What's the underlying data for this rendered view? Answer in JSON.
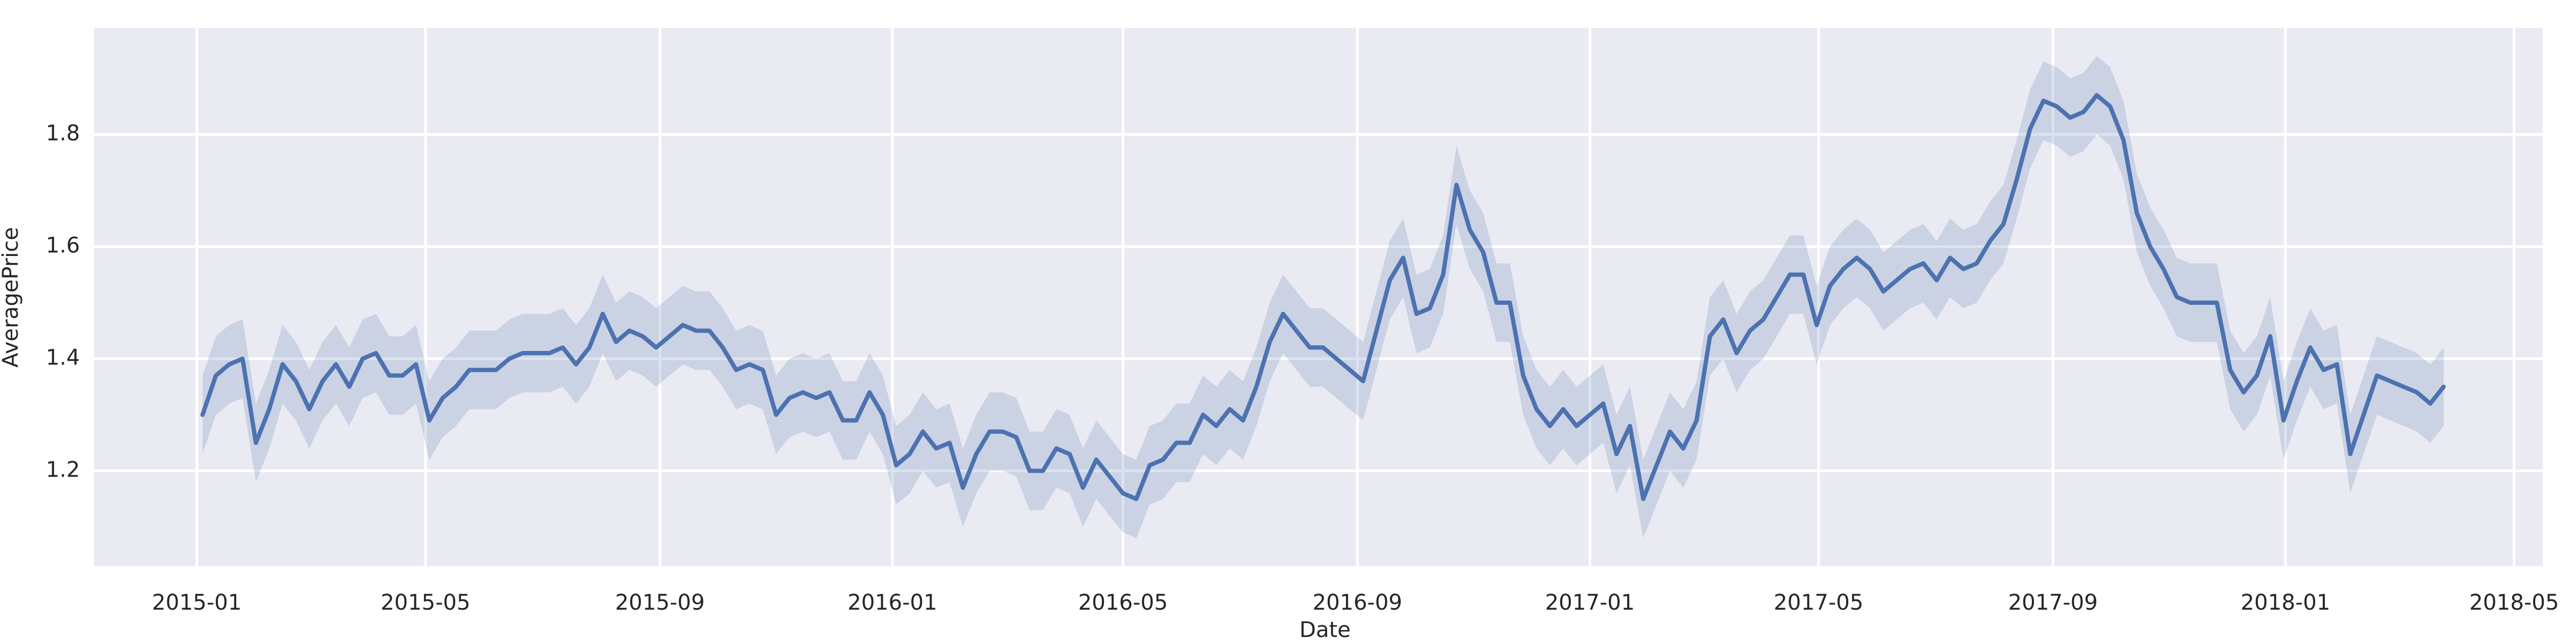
{
  "chart_data": {
    "type": "line",
    "x_label": "Date",
    "y_label": "AveragePrice",
    "x": [
      "2015-01-04",
      "2015-01-11",
      "2015-01-18",
      "2015-01-25",
      "2015-02-01",
      "2015-02-08",
      "2015-02-15",
      "2015-02-22",
      "2015-03-01",
      "2015-03-08",
      "2015-03-15",
      "2015-03-22",
      "2015-03-29",
      "2015-04-05",
      "2015-04-12",
      "2015-04-19",
      "2015-04-26",
      "2015-05-03",
      "2015-05-10",
      "2015-05-17",
      "2015-05-24",
      "2015-05-31",
      "2015-06-07",
      "2015-06-14",
      "2015-06-21",
      "2015-06-28",
      "2015-07-05",
      "2015-07-12",
      "2015-07-19",
      "2015-07-26",
      "2015-08-02",
      "2015-08-09",
      "2015-08-16",
      "2015-08-23",
      "2015-08-30",
      "2015-09-06",
      "2015-09-13",
      "2015-09-20",
      "2015-09-27",
      "2015-10-04",
      "2015-10-11",
      "2015-10-18",
      "2015-10-25",
      "2015-11-01",
      "2015-11-08",
      "2015-11-15",
      "2015-11-22",
      "2015-11-29",
      "2015-12-06",
      "2015-12-13",
      "2015-12-20",
      "2015-12-27",
      "2016-01-03",
      "2016-01-10",
      "2016-01-17",
      "2016-01-24",
      "2016-01-31",
      "2016-02-07",
      "2016-02-14",
      "2016-02-21",
      "2016-02-28",
      "2016-03-06",
      "2016-03-13",
      "2016-03-20",
      "2016-03-27",
      "2016-04-03",
      "2016-04-10",
      "2016-04-17",
      "2016-04-24",
      "2016-05-01",
      "2016-05-08",
      "2016-05-15",
      "2016-05-22",
      "2016-05-29",
      "2016-06-05",
      "2016-06-12",
      "2016-06-19",
      "2016-06-26",
      "2016-07-03",
      "2016-07-10",
      "2016-07-17",
      "2016-07-24",
      "2016-07-31",
      "2016-08-07",
      "2016-08-14",
      "2016-08-21",
      "2016-08-28",
      "2016-09-04",
      "2016-09-11",
      "2016-09-18",
      "2016-09-25",
      "2016-10-02",
      "2016-10-09",
      "2016-10-16",
      "2016-10-23",
      "2016-10-30",
      "2016-11-06",
      "2016-11-13",
      "2016-11-20",
      "2016-11-27",
      "2016-12-04",
      "2016-12-11",
      "2016-12-18",
      "2016-12-25",
      "2017-01-01",
      "2017-01-08",
      "2017-01-15",
      "2017-01-22",
      "2017-01-29",
      "2017-02-05",
      "2017-02-12",
      "2017-02-19",
      "2017-02-26",
      "2017-03-05",
      "2017-03-12",
      "2017-03-19",
      "2017-03-26",
      "2017-04-02",
      "2017-04-09",
      "2017-04-16",
      "2017-04-23",
      "2017-04-30",
      "2017-05-07",
      "2017-05-14",
      "2017-05-21",
      "2017-05-28",
      "2017-06-04",
      "2017-06-11",
      "2017-06-18",
      "2017-06-25",
      "2017-07-02",
      "2017-07-09",
      "2017-07-16",
      "2017-07-23",
      "2017-07-30",
      "2017-08-06",
      "2017-08-13",
      "2017-08-20",
      "2017-08-27",
      "2017-09-03",
      "2017-09-10",
      "2017-09-17",
      "2017-09-24",
      "2017-10-01",
      "2017-10-08",
      "2017-10-15",
      "2017-10-22",
      "2017-10-29",
      "2017-11-05",
      "2017-11-12",
      "2017-11-19",
      "2017-11-26",
      "2017-12-03",
      "2017-12-10",
      "2017-12-17",
      "2017-12-24",
      "2017-12-31",
      "2018-01-07",
      "2018-01-14",
      "2018-01-21",
      "2018-01-28",
      "2018-02-04",
      "2018-02-11",
      "2018-02-18",
      "2018-02-25",
      "2018-03-04",
      "2018-03-11",
      "2018-03-18",
      "2018-03-25"
    ],
    "series": [
      {
        "color": "#4c72b0",
        "values": [
          1.3,
          1.37,
          1.39,
          1.4,
          1.25,
          1.31,
          1.39,
          1.36,
          1.31,
          1.36,
          1.39,
          1.35,
          1.4,
          1.41,
          1.37,
          1.37,
          1.39,
          1.29,
          1.33,
          1.35,
          1.38,
          1.38,
          1.38,
          1.4,
          1.41,
          1.41,
          1.41,
          1.42,
          1.39,
          1.42,
          1.48,
          1.43,
          1.45,
          1.44,
          1.42,
          1.44,
          1.46,
          1.45,
          1.45,
          1.42,
          1.38,
          1.39,
          1.38,
          1.3,
          1.33,
          1.34,
          1.33,
          1.34,
          1.29,
          1.29,
          1.34,
          1.3,
          1.21,
          1.23,
          1.27,
          1.24,
          1.25,
          1.17,
          1.23,
          1.27,
          1.27,
          1.26,
          1.2,
          1.2,
          1.24,
          1.23,
          1.17,
          1.22,
          1.19,
          1.16,
          1.15,
          1.21,
          1.22,
          1.25,
          1.25,
          1.3,
          1.28,
          1.31,
          1.29,
          1.35,
          1.43,
          1.48,
          1.45,
          1.42,
          1.42,
          1.4,
          1.38,
          1.36,
          1.45,
          1.54,
          1.58,
          1.48,
          1.49,
          1.55,
          1.71,
          1.63,
          1.59,
          1.5,
          1.5,
          1.37,
          1.31,
          1.28,
          1.31,
          1.28,
          1.3,
          1.32,
          1.23,
          1.28,
          1.15,
          1.21,
          1.27,
          1.24,
          1.29,
          1.44,
          1.47,
          1.41,
          1.45,
          1.47,
          1.51,
          1.55,
          1.55,
          1.46,
          1.53,
          1.56,
          1.58,
          1.56,
          1.52,
          1.54,
          1.56,
          1.57,
          1.54,
          1.58,
          1.56,
          1.57,
          1.61,
          1.64,
          1.72,
          1.81,
          1.86,
          1.85,
          1.83,
          1.84,
          1.87,
          1.85,
          1.79,
          1.66,
          1.6,
          1.56,
          1.51,
          1.5,
          1.5,
          1.5,
          1.38,
          1.34,
          1.37,
          1.44,
          1.29,
          1.36,
          1.42,
          1.38,
          1.39,
          1.23,
          1.3,
          1.37,
          1.36,
          1.35,
          1.34,
          1.32,
          1.35
        ],
        "ci_lower": [
          1.23,
          1.3,
          1.32,
          1.33,
          1.18,
          1.24,
          1.32,
          1.29,
          1.24,
          1.29,
          1.32,
          1.28,
          1.33,
          1.34,
          1.3,
          1.3,
          1.32,
          1.22,
          1.26,
          1.28,
          1.31,
          1.31,
          1.31,
          1.33,
          1.34,
          1.34,
          1.34,
          1.35,
          1.32,
          1.35,
          1.41,
          1.36,
          1.38,
          1.37,
          1.35,
          1.37,
          1.39,
          1.38,
          1.38,
          1.35,
          1.31,
          1.32,
          1.31,
          1.23,
          1.26,
          1.27,
          1.26,
          1.27,
          1.22,
          1.22,
          1.27,
          1.23,
          1.14,
          1.16,
          1.2,
          1.17,
          1.18,
          1.1,
          1.16,
          1.2,
          1.2,
          1.19,
          1.13,
          1.13,
          1.17,
          1.16,
          1.1,
          1.15,
          1.12,
          1.09,
          1.08,
          1.14,
          1.15,
          1.18,
          1.18,
          1.23,
          1.21,
          1.24,
          1.22,
          1.28,
          1.36,
          1.41,
          1.38,
          1.35,
          1.35,
          1.33,
          1.31,
          1.29,
          1.38,
          1.47,
          1.51,
          1.41,
          1.42,
          1.48,
          1.64,
          1.56,
          1.52,
          1.43,
          1.43,
          1.3,
          1.24,
          1.21,
          1.24,
          1.21,
          1.23,
          1.25,
          1.16,
          1.21,
          1.08,
          1.14,
          1.2,
          1.17,
          1.22,
          1.37,
          1.4,
          1.34,
          1.38,
          1.4,
          1.44,
          1.48,
          1.48,
          1.39,
          1.46,
          1.49,
          1.51,
          1.49,
          1.45,
          1.47,
          1.49,
          1.5,
          1.47,
          1.51,
          1.49,
          1.5,
          1.54,
          1.57,
          1.65,
          1.74,
          1.79,
          1.78,
          1.76,
          1.77,
          1.8,
          1.78,
          1.72,
          1.59,
          1.53,
          1.49,
          1.44,
          1.43,
          1.43,
          1.43,
          1.31,
          1.27,
          1.3,
          1.37,
          1.22,
          1.29,
          1.35,
          1.31,
          1.32,
          1.16,
          1.23,
          1.3,
          1.29,
          1.28,
          1.27,
          1.25,
          1.28
        ],
        "ci_upper": [
          1.37,
          1.44,
          1.46,
          1.47,
          1.32,
          1.38,
          1.46,
          1.43,
          1.38,
          1.43,
          1.46,
          1.42,
          1.47,
          1.48,
          1.44,
          1.44,
          1.46,
          1.36,
          1.4,
          1.42,
          1.45,
          1.45,
          1.45,
          1.47,
          1.48,
          1.48,
          1.48,
          1.49,
          1.46,
          1.49,
          1.55,
          1.5,
          1.52,
          1.51,
          1.49,
          1.51,
          1.53,
          1.52,
          1.52,
          1.49,
          1.45,
          1.46,
          1.45,
          1.37,
          1.4,
          1.41,
          1.4,
          1.41,
          1.36,
          1.36,
          1.41,
          1.37,
          1.28,
          1.3,
          1.34,
          1.31,
          1.32,
          1.24,
          1.3,
          1.34,
          1.34,
          1.33,
          1.27,
          1.27,
          1.31,
          1.3,
          1.24,
          1.29,
          1.26,
          1.23,
          1.22,
          1.28,
          1.29,
          1.32,
          1.32,
          1.37,
          1.35,
          1.38,
          1.36,
          1.42,
          1.5,
          1.55,
          1.52,
          1.49,
          1.49,
          1.47,
          1.45,
          1.43,
          1.52,
          1.61,
          1.65,
          1.55,
          1.56,
          1.62,
          1.78,
          1.7,
          1.66,
          1.57,
          1.57,
          1.44,
          1.38,
          1.35,
          1.38,
          1.35,
          1.37,
          1.39,
          1.3,
          1.35,
          1.22,
          1.28,
          1.34,
          1.31,
          1.36,
          1.51,
          1.54,
          1.48,
          1.52,
          1.54,
          1.58,
          1.62,
          1.62,
          1.53,
          1.6,
          1.63,
          1.65,
          1.63,
          1.59,
          1.61,
          1.63,
          1.64,
          1.61,
          1.65,
          1.63,
          1.64,
          1.68,
          1.71,
          1.79,
          1.88,
          1.93,
          1.92,
          1.9,
          1.91,
          1.94,
          1.92,
          1.86,
          1.73,
          1.67,
          1.63,
          1.58,
          1.57,
          1.57,
          1.57,
          1.45,
          1.41,
          1.44,
          1.51,
          1.36,
          1.43,
          1.49,
          1.45,
          1.46,
          1.3,
          1.37,
          1.44,
          1.43,
          1.42,
          1.41,
          1.39,
          1.42
        ]
      }
    ],
    "xlim": [
      "2014-11-08",
      "2018-05-16"
    ],
    "xticks": [
      "2015-01",
      "2015-05",
      "2015-09",
      "2016-01",
      "2016-05",
      "2016-09",
      "2017-01",
      "2017-05",
      "2017-09",
      "2018-01",
      "2018-05"
    ],
    "ylim": [
      1.03,
      1.99
    ],
    "yticks": [
      1.2,
      1.4,
      1.6,
      1.8
    ],
    "grid": true
  }
}
